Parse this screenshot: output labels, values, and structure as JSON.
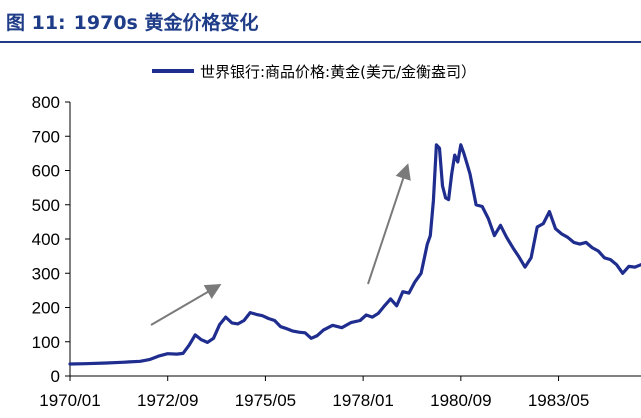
{
  "figure": {
    "number": "图 11:",
    "title": "1970s 黄金价格变化"
  },
  "colors": {
    "title": "#1f3c88",
    "series": "#1f2d8f",
    "arrow": "#7a7a7a"
  },
  "chart_data": {
    "type": "line",
    "title": "",
    "xlabel": "",
    "ylabel": "",
    "ylim": [
      0,
      800
    ],
    "yticks": [
      0,
      100,
      200,
      300,
      400,
      500,
      600,
      700,
      800
    ],
    "xtick_labels": [
      "1970/01",
      "1972/09",
      "1975/05",
      "1978/01",
      "1980/09",
      "1983/05"
    ],
    "x_range": [
      "1970-01",
      "1985-08"
    ],
    "grid": false,
    "legend": "top-center",
    "annotations": [
      "arrow-up-right",
      "arrow-up-right"
    ],
    "series": [
      {
        "name": "世界银行:商品价格:黄金(美元/金衡盎司）",
        "x": [
          "1970-01",
          "1970-06",
          "1971-01",
          "1971-06",
          "1971-12",
          "1972-03",
          "1972-06",
          "1972-09",
          "1972-12",
          "1973-02",
          "1973-04",
          "1973-06",
          "1973-08",
          "1973-10",
          "1973-12",
          "1974-02",
          "1974-04",
          "1974-06",
          "1974-08",
          "1974-10",
          "1974-12",
          "1975-02",
          "1975-04",
          "1975-06",
          "1975-08",
          "1975-10",
          "1975-12",
          "1976-02",
          "1976-04",
          "1976-06",
          "1976-08",
          "1976-10",
          "1976-12",
          "1977-03",
          "1977-06",
          "1977-09",
          "1977-12",
          "1978-02",
          "1978-04",
          "1978-06",
          "1978-08",
          "1978-10",
          "1978-12",
          "1979-02",
          "1979-04",
          "1979-06",
          "1979-08",
          "1979-10",
          "1979-11",
          "1979-12",
          "1980-01",
          "1980-02",
          "1980-03",
          "1980-04",
          "1980-05",
          "1980-06",
          "1980-07",
          "1980-08",
          "1980-09",
          "1980-10",
          "1980-11",
          "1980-12",
          "1981-02",
          "1981-04",
          "1981-06",
          "1981-08",
          "1981-10",
          "1981-12",
          "1982-02",
          "1982-04",
          "1982-06",
          "1982-08",
          "1982-10",
          "1982-12",
          "1983-02",
          "1983-04",
          "1983-06",
          "1983-08",
          "1983-10",
          "1983-12",
          "1984-02",
          "1984-04",
          "1984-06",
          "1984-08",
          "1984-10",
          "1984-12",
          "1985-02",
          "1985-04",
          "1985-06",
          "1985-08"
        ],
        "values": [
          35,
          36,
          38,
          40,
          43,
          48,
          58,
          65,
          64,
          66,
          90,
          120,
          106,
          98,
          110,
          150,
          172,
          155,
          152,
          162,
          185,
          180,
          176,
          168,
          162,
          144,
          138,
          131,
          128,
          126,
          110,
          118,
          134,
          148,
          141,
          156,
          162,
          178,
          172,
          183,
          205,
          225,
          205,
          246,
          242,
          275,
          300,
          385,
          410,
          512,
          675,
          665,
          555,
          520,
          515,
          590,
          645,
          625,
          675,
          650,
          620,
          590,
          500,
          495,
          460,
          410,
          440,
          405,
          375,
          348,
          318,
          345,
          435,
          445,
          480,
          430,
          415,
          405,
          390,
          385,
          390,
          375,
          365,
          345,
          340,
          325,
          300,
          320,
          318,
          325
        ]
      }
    ]
  }
}
